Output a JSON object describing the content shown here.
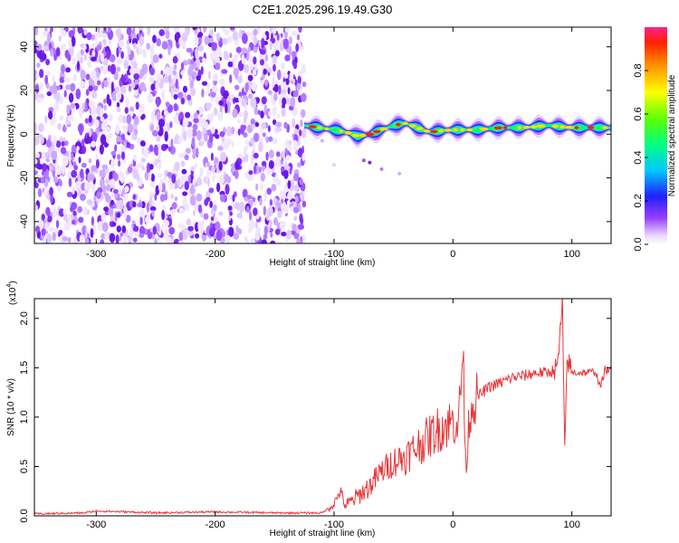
{
  "title": "C2E1.2025.296.19.49.G30",
  "chart_data": [
    {
      "type": "heatmap",
      "panel": "spectrogram",
      "xlabel": "Height of straight line (km)",
      "ylabel": "Frequency (Hz)",
      "xlim": [
        -352,
        133
      ],
      "ylim": [
        -50,
        49
      ],
      "xticks": [
        -300,
        -200,
        -100,
        0,
        100
      ],
      "yticks": [
        -40,
        -20,
        0,
        20,
        40
      ],
      "noise_region_x": [
        -352,
        -125
      ],
      "signal_band_start_x": -128,
      "signal_ridge": [
        {
          "x": -125,
          "y": 4
        },
        {
          "x": -100,
          "y": 2
        },
        {
          "x": -90,
          "y": 1
        },
        {
          "x": -80,
          "y": -1
        },
        {
          "x": -70,
          "y": 0
        },
        {
          "x": -60,
          "y": 2
        },
        {
          "x": -50,
          "y": 4
        },
        {
          "x": -40,
          "y": 5
        },
        {
          "x": -30,
          "y": 3
        },
        {
          "x": -20,
          "y": 1
        },
        {
          "x": 0,
          "y": 2
        },
        {
          "x": 20,
          "y": 2
        },
        {
          "x": 40,
          "y": 3
        },
        {
          "x": 60,
          "y": 3
        },
        {
          "x": 80,
          "y": 4
        },
        {
          "x": 100,
          "y": 3
        },
        {
          "x": 133,
          "y": 3
        }
      ],
      "colorbar": {
        "label": "Normalized spectral amplitude",
        "range": [
          0,
          1
        ],
        "ticks": [
          "0.0",
          "0.2",
          "0.4",
          "0.6",
          "0.8"
        ]
      }
    },
    {
      "type": "line",
      "panel": "snr",
      "xlabel": "Height of straight line (km)",
      "ylabel": "SNR (10 * v/v)",
      "scale_label": "(x10",
      "scale_exp": "4",
      "xlim": [
        -352,
        133
      ],
      "ylim": [
        0,
        2.2
      ],
      "xticks": [
        -300,
        -200,
        -100,
        0,
        100
      ],
      "yticks": [
        "0.0",
        "0.5",
        "1.0",
        "1.5",
        "2.0"
      ],
      "series": [
        {
          "name": "SNR",
          "color": "#e8373a",
          "points": [
            [
              -352,
              0.02
            ],
            [
              -310,
              0.03
            ],
            [
              -300,
              0.05
            ],
            [
              -250,
              0.03
            ],
            [
              -200,
              0.04
            ],
            [
              -150,
              0.03
            ],
            [
              -110,
              0.03
            ],
            [
              -100,
              0.12
            ],
            [
              -95,
              0.25
            ],
            [
              -90,
              0.1
            ],
            [
              -80,
              0.2
            ],
            [
              -70,
              0.3
            ],
            [
              -60,
              0.45
            ],
            [
              -50,
              0.55
            ],
            [
              -40,
              0.6
            ],
            [
              -30,
              0.7
            ],
            [
              -20,
              0.8
            ],
            [
              -10,
              0.9
            ],
            [
              0,
              0.95
            ],
            [
              5,
              1.0
            ],
            [
              9,
              1.72
            ],
            [
              10,
              0.5
            ],
            [
              15,
              1.1
            ],
            [
              20,
              1.2
            ],
            [
              30,
              1.3
            ],
            [
              40,
              1.35
            ],
            [
              50,
              1.4
            ],
            [
              60,
              1.42
            ],
            [
              70,
              1.45
            ],
            [
              80,
              1.45
            ],
            [
              88,
              1.5
            ],
            [
              92,
              2.15
            ],
            [
              94,
              0.6
            ],
            [
              96,
              1.6
            ],
            [
              100,
              1.45
            ],
            [
              110,
              1.45
            ],
            [
              120,
              1.46
            ],
            [
              124,
              1.3
            ],
            [
              128,
              1.48
            ],
            [
              133,
              1.47
            ]
          ]
        }
      ]
    }
  ]
}
